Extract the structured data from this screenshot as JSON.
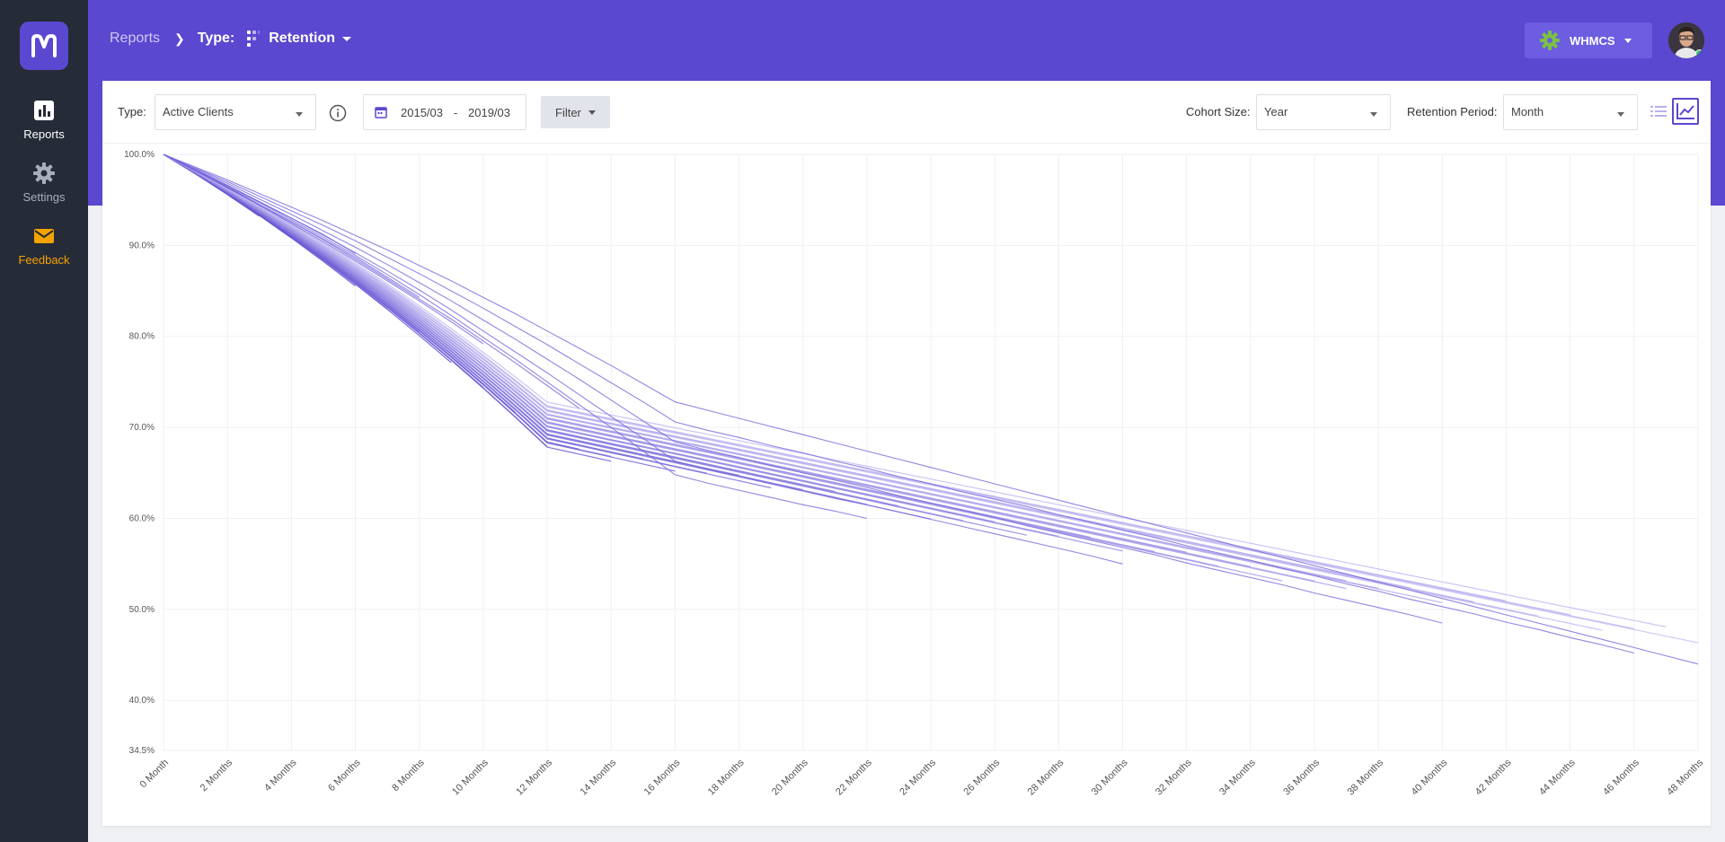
{
  "sidebar": {
    "items": [
      {
        "label": "Reports",
        "icon": "bar-chart-icon"
      },
      {
        "label": "Settings",
        "icon": "gear-icon"
      },
      {
        "label": "Feedback",
        "icon": "envelope-icon"
      }
    ]
  },
  "header": {
    "breadcrumb_root": "Reports",
    "type_label": "Type:",
    "report_name": "Retention",
    "account": "WHMCS"
  },
  "toolbar": {
    "type_label": "Type:",
    "type_value": "Active Clients",
    "date_from": "2015/03",
    "date_sep": "-",
    "date_to": "2019/03",
    "filter_label": "Filter",
    "cohort_label": "Cohort Size:",
    "cohort_value": "Year",
    "period_label": "Retention Period:",
    "period_value": "Month"
  },
  "colors": {
    "accent": "#5a48d0",
    "sidebar": "#262b38",
    "feedback": "#f4a300",
    "line_dark": "#5a48d0",
    "line_light": "#c9c2f3"
  },
  "chart_data": {
    "type": "line",
    "title": "",
    "xlabel": "",
    "ylabel": "",
    "ylim": [
      34.5,
      100
    ],
    "yticks": [
      "100.0%",
      "90.0%",
      "80.0%",
      "70.0%",
      "60.0%",
      "50.0%",
      "40.0%",
      "34.5%"
    ],
    "ytick_values": [
      100,
      90,
      80,
      70,
      60,
      50,
      40,
      34.5
    ],
    "xticks": [
      "0 Month",
      "2 Months",
      "4 Months",
      "6 Months",
      "8 Months",
      "10 Months",
      "12 Months",
      "14 Months",
      "16 Months",
      "18 Months",
      "20 Months",
      "22 Months",
      "24 Months",
      "26 Months",
      "28 Months",
      "30 Months",
      "32 Months",
      "34 Months",
      "36 Months",
      "38 Months",
      "40 Months",
      "42 Months",
      "44 Months",
      "46 Months",
      "48 Months"
    ],
    "x_range": [
      0,
      48
    ],
    "grid": true,
    "series_note_count": 48,
    "series": [
      {
        "values": [
          100,
          98.3,
          96.6,
          94.8,
          93.0,
          91.2,
          89.1
        ]
      },
      {
        "values": [
          100,
          98.2,
          96.4,
          94.5,
          92.6,
          90.7,
          88.7,
          86.5,
          84.3
        ]
      },
      {
        "values": [
          100,
          98.2,
          96.3,
          94.4,
          92.4,
          90.4,
          88.3,
          86.1,
          83.9,
          81.6,
          79.2
        ]
      },
      {
        "values": [
          100,
          98.2,
          96.4,
          94.5,
          92.6,
          90.6,
          88.5,
          86.3,
          84.1,
          81.9,
          79.5,
          77.1,
          74.6,
          72.1
        ]
      },
      {
        "values": [
          100,
          98.3,
          96.5,
          94.7,
          92.8,
          90.9,
          88.9,
          86.8,
          84.6,
          82.3,
          79.9,
          77.5,
          75.0,
          72.5,
          70.0,
          67.4,
          64.8,
          63.9,
          63.1,
          62.3,
          61.5,
          60.8,
          60.0
        ]
      },
      {
        "values": [
          100,
          98.3,
          96.6,
          94.8,
          93.0,
          91.1,
          89.2,
          87.2,
          85.1,
          82.9,
          80.6,
          78.3,
          76.0,
          73.6,
          71.2,
          68.8,
          66.3,
          65.4,
          64.6,
          63.8,
          63.0,
          62.2,
          61.5,
          60.7,
          59.9,
          59.1,
          58.3,
          57.5,
          56.7,
          55.9,
          55.0
        ]
      },
      {
        "values": [
          100,
          98.4,
          96.8,
          95.1,
          93.4,
          91.6,
          89.8,
          87.9,
          85.9,
          83.9,
          81.8,
          79.7,
          77.5,
          75.3,
          73.0,
          70.7,
          68.4,
          67.5,
          66.7,
          65.8,
          65.0,
          64.2,
          63.4,
          62.5,
          61.7,
          60.9,
          60.1,
          59.2,
          58.4,
          57.6,
          56.8,
          56.0,
          55.1,
          54.3,
          53.5,
          52.7,
          51.8,
          51.0,
          50.2,
          49.4,
          48.5
        ]
      },
      {
        "values": [
          100,
          98.5,
          97.0,
          95.4,
          93.8,
          92.2,
          90.5,
          88.7,
          86.9,
          85.0,
          83.1,
          81.1,
          79.1,
          77.0,
          74.9,
          72.8,
          70.6,
          69.7,
          68.9,
          68.0,
          67.2,
          66.3,
          65.5,
          64.6,
          63.8,
          62.9,
          62.1,
          61.3,
          60.4,
          59.6,
          58.7,
          57.9,
          57.0,
          56.2,
          55.4,
          54.5,
          53.7,
          52.8,
          52.0,
          51.1,
          50.3,
          49.5,
          48.6,
          47.8,
          46.9,
          46.1,
          45.2
        ]
      },
      {
        "values": [
          100,
          98.6,
          97.2,
          95.7,
          94.2,
          92.7,
          91.1,
          89.5,
          87.8,
          86.1,
          84.3,
          82.5,
          80.6,
          78.7,
          76.8,
          74.8,
          72.8,
          71.9,
          71.0,
          70.1,
          69.2,
          68.3,
          67.4,
          66.5,
          65.6,
          64.7,
          63.8,
          62.9,
          62.0,
          61.1,
          60.2,
          59.3,
          58.4,
          57.5,
          56.6,
          55.7,
          54.8,
          53.9,
          53.0,
          52.1,
          51.2,
          50.3,
          49.4,
          48.5,
          47.6,
          46.7,
          45.8,
          44.9,
          44.0
        ]
      }
    ]
  }
}
